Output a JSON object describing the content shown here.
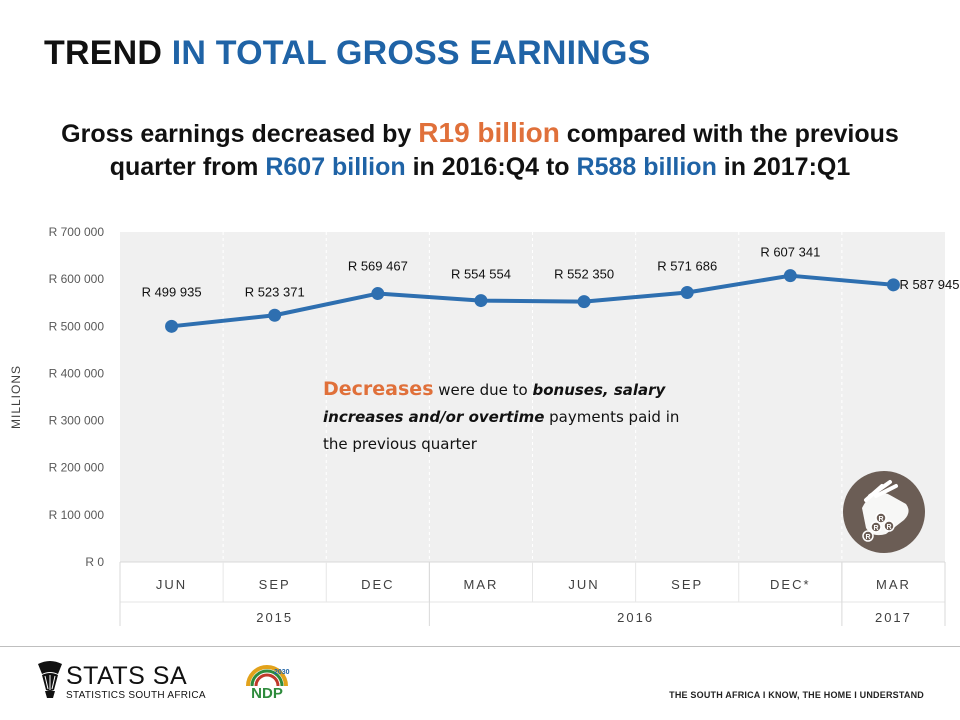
{
  "header": {
    "title_part1": "TREND",
    "title_part2": "IN TOTAL GROSS EARNINGS"
  },
  "headline": {
    "line1_a": "Gross earnings decreased by ",
    "line1_highlight": "R19 billion",
    "line1_b": " compared with the previous",
    "line2_a": "quarter from ",
    "line2_value1": "R607 billion",
    "line2_b": " in 2016:Q4 to ",
    "line2_value2": "R588 billion",
    "line2_c": " in 2017:Q1"
  },
  "annotation": {
    "highlight": "Decreases",
    "text1": " were due to ",
    "bold": "bonuses, salary increases and/or overtime",
    "text2": " payments paid in the previous quarter"
  },
  "chart_data": {
    "type": "line",
    "ylabel": "MILLIONS",
    "ylim": [
      0,
      700000
    ],
    "yticks": [
      0,
      100000,
      200000,
      300000,
      400000,
      500000,
      600000,
      700000
    ],
    "ytick_labels": [
      "R 0",
      "R 100 000",
      "R 200 000",
      "R 300 000",
      "R 400 000",
      "R 500 000",
      "R 600 000",
      "R 700 000"
    ],
    "categories": [
      "JUN",
      "SEP",
      "DEC",
      "MAR",
      "JUN",
      "SEP",
      "DEC*",
      "MAR"
    ],
    "year_groups": [
      {
        "label": "2015",
        "count": 3
      },
      {
        "label": "2016",
        "count": 4
      },
      {
        "label": "2017",
        "count": 1
      }
    ],
    "values": [
      499935,
      523371,
      569467,
      554554,
      552350,
      571686,
      607341,
      587945
    ],
    "data_labels": [
      "R 499 935",
      "R 523 371",
      "R 569 467",
      "R 554 554",
      "R 552 350",
      "R 571 686",
      "R 607 341",
      "R 587 945"
    ],
    "line_color": "#2e6fb0",
    "plot_bg": "#f0f0f0",
    "grid": true
  },
  "footer": {
    "org_name": "STATS SA",
    "org_sub": "STATISTICS SOUTH AFRICA",
    "ndp_text": "NDP",
    "ndp_year": "2030",
    "slogan": "THE SOUTH AFRICA I KNOW, THE HOME I UNDERSTAND"
  },
  "icon": {
    "name": "hand-coins-icon",
    "coin_letter": "R"
  }
}
